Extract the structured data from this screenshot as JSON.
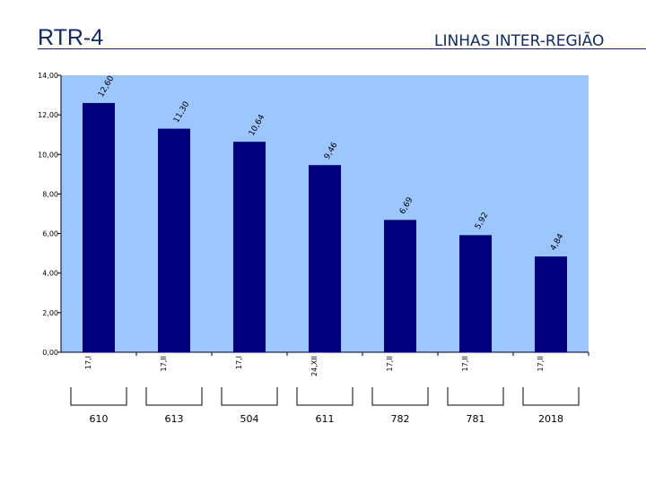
{
  "header": {
    "title": "RTR-4",
    "subtitle": "LINHAS INTER-REGIÃO"
  },
  "colors": {
    "plot_bg": "#9bc6ff",
    "bar": "#00007f",
    "title": "#0f2a66"
  },
  "chart_data": {
    "type": "bar",
    "categories": [
      "17,I",
      "17,II",
      "17,I",
      "24,XII",
      "17,II",
      "17,II",
      "17,II"
    ],
    "groups": [
      "610",
      "613",
      "504",
      "611",
      "782",
      "781",
      "2018"
    ],
    "values": [
      12.6,
      11.3,
      10.64,
      9.46,
      6.69,
      5.92,
      4.84
    ],
    "value_labels": [
      "12,60",
      "11,30",
      "10,64",
      "9,46",
      "6,69",
      "5,92",
      "4,84"
    ],
    "y_ticks": [
      "0,00",
      "2,00",
      "4,00",
      "6,00",
      "8,00",
      "10,00",
      "12,00",
      "14,00"
    ],
    "ylim": [
      0,
      14
    ],
    "grid": false,
    "legend": "none"
  }
}
